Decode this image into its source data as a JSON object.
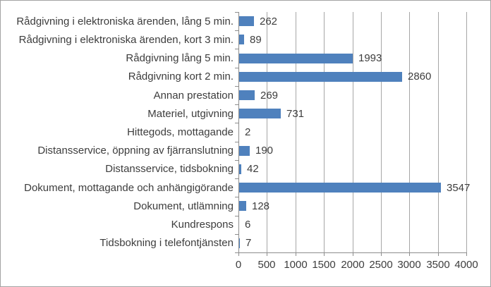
{
  "chart_data": {
    "type": "bar",
    "orientation": "horizontal",
    "title": "",
    "xlabel": "",
    "ylabel": "",
    "categories": [
      "Rådgivning i elektroniska ärenden, lång 5 min.",
      "Rådgivning i elektroniska ärenden, kort 3 min.",
      "Rådgivning lång 5 min.",
      "Rådgivning kort 2 min.",
      "Annan prestation",
      "Materiel, utgivning",
      "Hittegods, mottagande",
      "Distansservice, öppning av fjärranslutning",
      "Distansservice, tidsbokning",
      "Dokument, mottagande och anhängigörande",
      "Dokument, utlämning",
      "Kundrespons",
      "Tidsbokning i telefontjänsten"
    ],
    "values": [
      262,
      89,
      1993,
      2860,
      269,
      731,
      2,
      190,
      42,
      3547,
      128,
      6,
      7
    ],
    "value_labels": [
      "262",
      "89",
      "1993",
      "2860",
      "269",
      "731",
      "2",
      "190",
      "42",
      "3547",
      "128",
      "6",
      "7"
    ],
    "xlim": [
      0,
      4000
    ],
    "xticks": [
      0,
      500,
      1000,
      1500,
      2000,
      2500,
      3000,
      3500,
      4000
    ],
    "xtick_labels": [
      "0",
      "500",
      "1000",
      "1500",
      "2000",
      "2500",
      "3000",
      "3500",
      "4000"
    ],
    "grid": "vertical-major",
    "legend": "none",
    "data_labels": "outside-end",
    "bar_color": "#4f81bd",
    "gridline_color": "#a6a6a6",
    "axis_color": "#8c8c8c",
    "text_color": "#3d3d3d",
    "background": "#ffffff"
  }
}
